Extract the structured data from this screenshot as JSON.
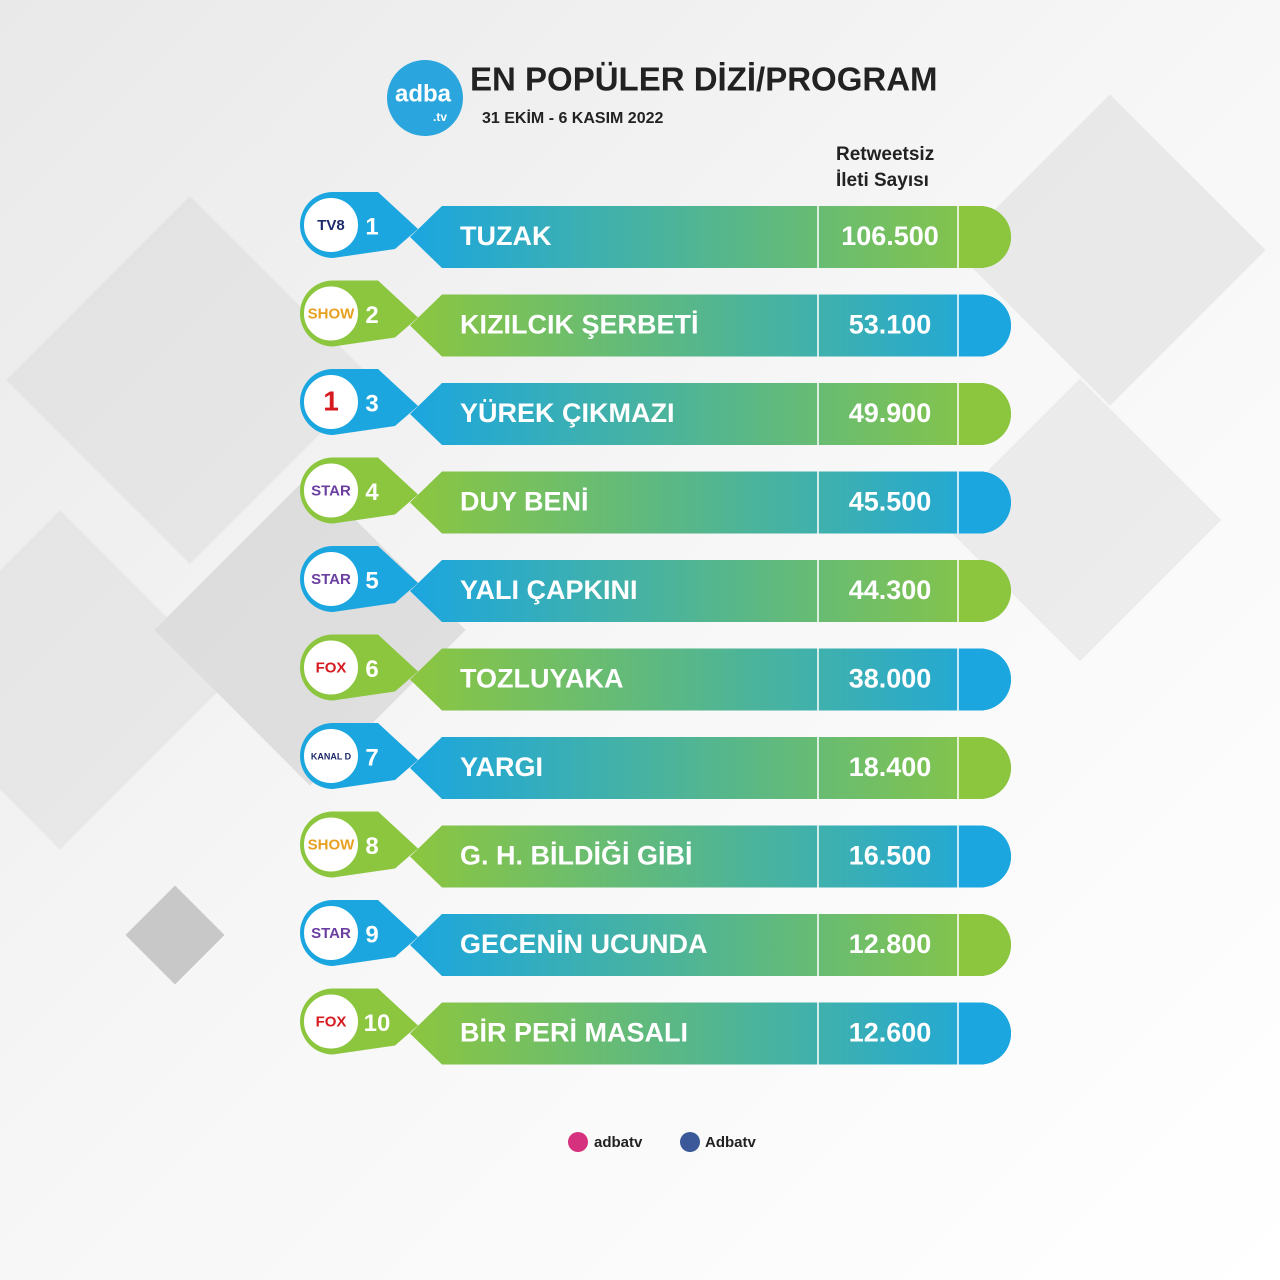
{
  "header": {
    "logo": "adba",
    "logo_sub": ".tv",
    "title": "EN POPÜLER DİZİ/PROGRAM",
    "date": "31 EKİM - 6 KASIM 2022"
  },
  "column_header": [
    "Retweetsiz",
    "İleti Sayısı"
  ],
  "rows": [
    {
      "channel": "TV8",
      "rank": "1",
      "name": "TUZAK",
      "count": "106.500"
    },
    {
      "channel": "SHOW",
      "rank": "2",
      "name": "KIZILCIK ŞERBETİ",
      "count": "53.100"
    },
    {
      "channel": "1",
      "rank": "3",
      "name": "YÜREK ÇIKMAZI",
      "count": "49.900"
    },
    {
      "channel": "STAR",
      "rank": "4",
      "name": "DUY BENİ",
      "count": "45.500"
    },
    {
      "channel": "STAR",
      "rank": "5",
      "name": "YALI ÇAPKINI",
      "count": "44.300"
    },
    {
      "channel": "FOX",
      "rank": "6",
      "name": "TOZLUYAKA",
      "count": "38.000"
    },
    {
      "channel": "KANAL D",
      "rank": "7",
      "name": "YARGI",
      "count": "18.400"
    },
    {
      "channel": "SHOW",
      "rank": "8",
      "name": "G. H. BİLDİĞİ GİBİ",
      "count": "16.500"
    },
    {
      "channel": "STAR",
      "rank": "9",
      "name": "GECENİN UCUNDA",
      "count": "12.800"
    },
    {
      "channel": "FOX",
      "rank": "10",
      "name": "BİR PERİ MASALI",
      "count": "12.600"
    }
  ],
  "footer": {
    "instagram": "adbatv",
    "facebook": "Adbatv"
  }
}
